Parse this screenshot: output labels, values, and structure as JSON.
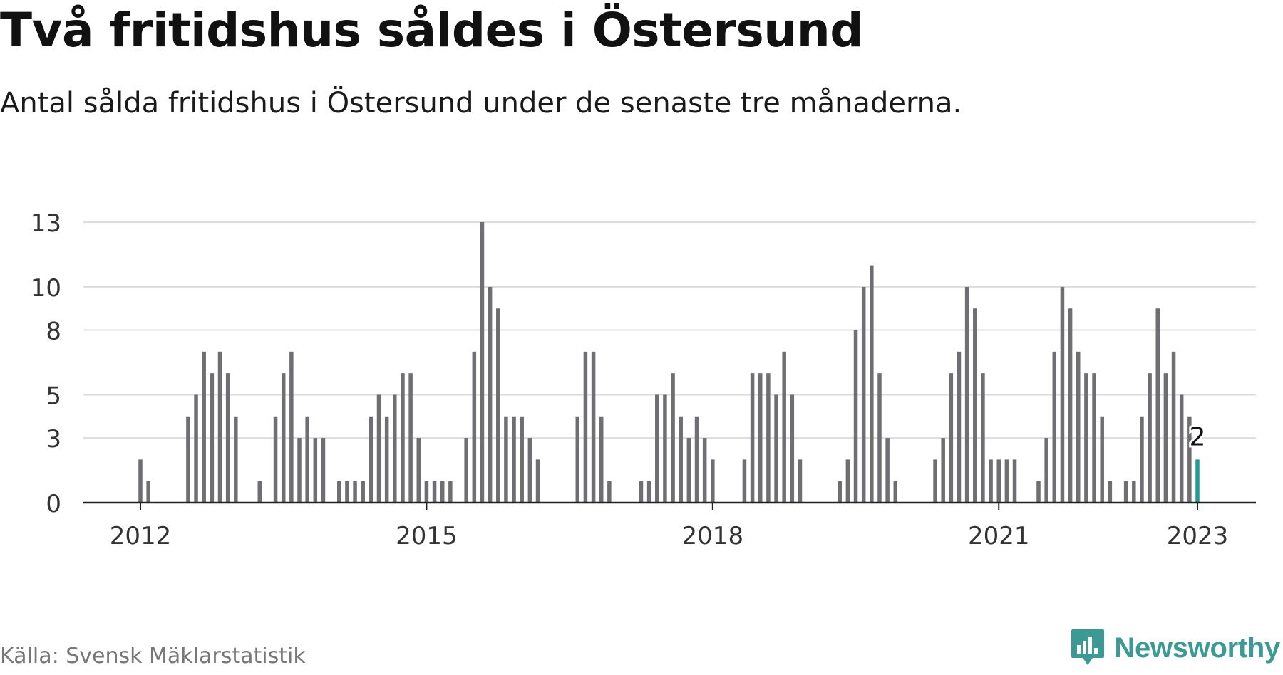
{
  "header": {
    "title": "Två fritidshus såldes i Östersund",
    "subtitle": "Antal sålda fritidshus i Östersund under de senaste tre månaderna."
  },
  "footer": {
    "source": "Källa: Svensk Mäklarstatistik",
    "brand": "Newsworthy",
    "brand_icon": "newsworthy-logo-icon"
  },
  "colors": {
    "bar": "#6f6f73",
    "highlight": "#1a9e96",
    "grid": "#dcdcdc",
    "axis": "#222222",
    "brand": "#3d9993"
  },
  "chart_data": {
    "type": "bar",
    "ylim": [
      0,
      13
    ],
    "yticks": [
      0,
      3,
      5,
      8,
      10,
      13
    ],
    "xticks": [
      {
        "label": "2012",
        "month": "2012-01"
      },
      {
        "label": "2015",
        "month": "2015-01"
      },
      {
        "label": "2018",
        "month": "2018-01"
      },
      {
        "label": "2021",
        "month": "2021-01"
      },
      {
        "label": "2023",
        "month": "2023-02"
      }
    ],
    "grid": true,
    "last_value_label": "2",
    "series": [
      {
        "x": [
          "2012-01",
          "2012-02",
          "2012-03",
          "2012-04",
          "2012-05",
          "2012-06",
          "2012-07",
          "2012-08",
          "2012-09",
          "2012-10",
          "2012-11",
          "2012-12",
          "2013-01",
          "2013-02",
          "2013-03",
          "2013-04",
          "2013-05",
          "2013-06",
          "2013-07",
          "2013-08",
          "2013-09",
          "2013-10",
          "2013-11",
          "2013-12",
          "2014-01",
          "2014-02",
          "2014-03",
          "2014-04",
          "2014-05",
          "2014-06",
          "2014-07",
          "2014-08",
          "2014-09",
          "2014-10",
          "2014-11",
          "2014-12",
          "2015-01",
          "2015-02",
          "2015-03",
          "2015-04",
          "2015-05",
          "2015-06",
          "2015-07",
          "2015-08",
          "2015-09",
          "2015-10",
          "2015-11",
          "2015-12",
          "2016-01",
          "2016-02",
          "2016-03",
          "2016-04",
          "2016-05",
          "2016-06",
          "2016-07",
          "2016-08",
          "2016-09",
          "2016-10",
          "2016-11",
          "2016-12",
          "2017-01",
          "2017-02",
          "2017-03",
          "2017-04",
          "2017-05",
          "2017-06",
          "2017-07",
          "2017-08",
          "2017-09",
          "2017-10",
          "2017-11",
          "2017-12",
          "2018-01",
          "2018-02",
          "2018-03",
          "2018-04",
          "2018-05",
          "2018-06",
          "2018-07",
          "2018-08",
          "2018-09",
          "2018-10",
          "2018-11",
          "2018-12",
          "2019-01",
          "2019-02",
          "2019-03",
          "2019-04",
          "2019-05",
          "2019-06",
          "2019-07",
          "2019-08",
          "2019-09",
          "2019-10",
          "2019-11",
          "2019-12",
          "2020-01",
          "2020-02",
          "2020-03",
          "2020-04",
          "2020-05",
          "2020-06",
          "2020-07",
          "2020-08",
          "2020-09",
          "2020-10",
          "2020-11",
          "2020-12",
          "2021-01",
          "2021-02",
          "2021-03",
          "2021-04",
          "2021-05",
          "2021-06",
          "2021-07",
          "2021-08",
          "2021-09",
          "2021-10",
          "2021-11",
          "2021-12",
          "2022-01",
          "2022-02",
          "2022-03",
          "2022-04",
          "2022-05",
          "2022-06",
          "2022-07",
          "2022-08",
          "2022-09",
          "2022-10",
          "2022-11",
          "2022-12",
          "2023-01",
          "2023-02"
        ],
        "values": [
          2,
          1,
          0,
          0,
          0,
          0,
          4,
          5,
          7,
          6,
          7,
          6,
          4,
          0,
          0,
          1,
          0,
          4,
          6,
          7,
          3,
          4,
          3,
          3,
          0,
          1,
          1,
          1,
          1,
          4,
          5,
          4,
          5,
          6,
          6,
          3,
          1,
          1,
          1,
          1,
          0,
          3,
          7,
          13,
          10,
          9,
          4,
          4,
          4,
          3,
          2,
          0,
          0,
          0,
          0,
          4,
          7,
          7,
          4,
          1,
          0,
          0,
          0,
          1,
          1,
          5,
          5,
          6,
          4,
          3,
          4,
          3,
          2,
          0,
          0,
          0,
          2,
          6,
          6,
          6,
          5,
          7,
          5,
          2,
          0,
          0,
          0,
          0,
          1,
          2,
          8,
          10,
          11,
          6,
          3,
          1,
          0,
          0,
          0,
          0,
          2,
          3,
          6,
          7,
          10,
          9,
          6,
          2,
          2,
          2,
          2,
          0,
          0,
          1,
          3,
          7,
          10,
          9,
          7,
          6,
          6,
          4,
          1,
          0,
          1,
          1,
          4,
          6,
          9,
          6,
          7,
          5,
          4,
          2
        ]
      }
    ]
  }
}
